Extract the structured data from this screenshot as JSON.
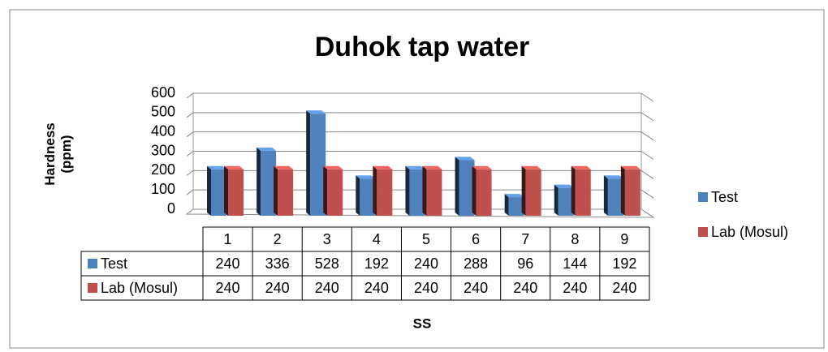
{
  "chart_data": {
    "type": "bar3d",
    "title": "Duhok tap water",
    "y_label": "Hardness (ppm)",
    "x_label": "SS",
    "categories": [
      "1",
      "2",
      "3",
      "4",
      "5",
      "6",
      "7",
      "8",
      "9"
    ],
    "series": [
      {
        "name": "Test",
        "color": "#4f81bd",
        "values": [
          240,
          336,
          528,
          192,
          240,
          288,
          96,
          144,
          192
        ]
      },
      {
        "name": "Lab (Mosul)",
        "color": "#c0504d",
        "values": [
          240,
          240,
          240,
          240,
          240,
          240,
          240,
          240,
          240
        ]
      }
    ],
    "ylim": [
      0,
      600
    ],
    "yticks": [
      0,
      100,
      200,
      300,
      400,
      500,
      600
    ],
    "grid": true,
    "legend": "right"
  }
}
